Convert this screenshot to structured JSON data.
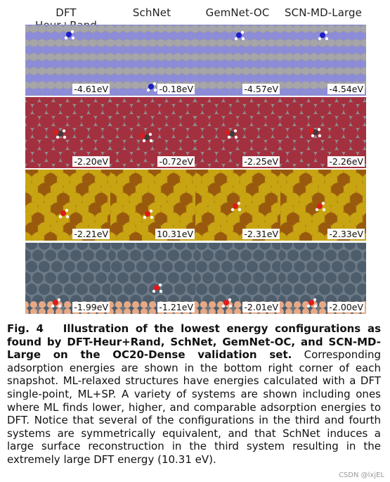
{
  "columns": [
    "DFT Heur+Rand",
    "SchNet",
    "GemNet-OC",
    "SCN-MD-Large"
  ],
  "rows": [
    {
      "energies": [
        "-4.61eV",
        "-0.18eV",
        "-4.57eV",
        "-4.54eV"
      ],
      "colors": {
        "background": "#9a9a9e",
        "large": "#8c8cd8",
        "small": "#a6a6aa"
      }
    },
    {
      "energies": [
        "-2.20eV",
        "-0.72eV",
        "-2.25eV",
        "-2.26eV"
      ],
      "colors": {
        "background": "#8f8f8f",
        "large": "#a3303f",
        "small": "#c8c8c8"
      }
    },
    {
      "energies": [
        "-2.21eV",
        "10.31eV",
        "-2.31eV",
        "-2.33eV"
      ],
      "colors": {
        "background": "#a88a10",
        "large": "#c8a412",
        "small": "#9a5a0e"
      }
    },
    {
      "energies": [
        "-1.99eV",
        "-1.21eV",
        "-2.01eV",
        "-2.00eV"
      ],
      "colors": {
        "background": "#6d7a86",
        "large": "#4d5d6c",
        "small": "#e7a985"
      }
    }
  ],
  "caption": {
    "label": "Fig. 4",
    "bold_text": "Illustration of the lowest energy configurations as found by DFT-Heur+Rand, SchNet, GemNet-OC, and SCN-MD-Large on the OC20-Dense validation set.",
    "body": "Corresponding adsorption energies are shown in the bottom right corner of each snapshot. ML-relaxed structures have energies calculated with a DFT single-point, ML+SP. A variety of systems are shown including ones where ML finds lower, higher, and comparable adsorption energies to DFT. Notice that several of the configurations in the third and fourth systems are symmetrically equivalent, and that SchNet induces a large surface reconstruction in the third system resulting in the extremely large DFT energy (10.31 eV)."
  },
  "watermark": "CSDN @lxjEL"
}
